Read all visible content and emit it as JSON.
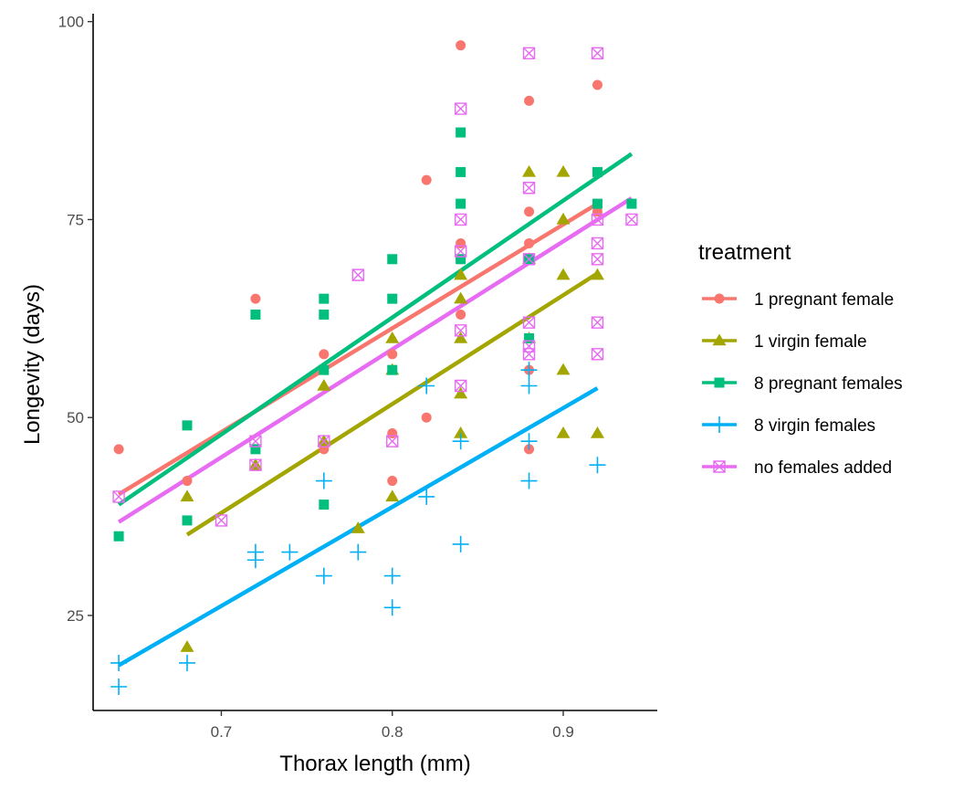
{
  "chart_data": {
    "type": "scatter",
    "title": "",
    "xlabel": "Thorax length (mm)",
    "ylabel": "Longevity (days)",
    "xlim": [
      0.625,
      0.955
    ],
    "ylim": [
      13,
      101
    ],
    "x_ticks": [
      0.7,
      0.8,
      0.9
    ],
    "y_ticks": [
      25,
      50,
      75,
      100
    ],
    "x_tick_labels": [
      "0.7",
      "0.8",
      "0.9"
    ],
    "y_tick_labels": [
      "25",
      "50",
      "75",
      "100"
    ],
    "grid": false,
    "legend": {
      "title": "treatment",
      "position": "right"
    },
    "series": [
      {
        "name": "1 pregnant female",
        "color": "#F8766D",
        "marker": "circle",
        "points": [
          [
            0.64,
            46
          ],
          [
            0.68,
            42
          ],
          [
            0.72,
            65
          ],
          [
            0.76,
            58
          ],
          [
            0.76,
            46
          ],
          [
            0.8,
            58
          ],
          [
            0.8,
            48
          ],
          [
            0.8,
            42
          ],
          [
            0.82,
            80
          ],
          [
            0.82,
            50
          ],
          [
            0.84,
            97
          ],
          [
            0.84,
            72
          ],
          [
            0.84,
            70
          ],
          [
            0.84,
            63
          ],
          [
            0.88,
            90
          ],
          [
            0.88,
            76
          ],
          [
            0.88,
            72
          ],
          [
            0.88,
            56
          ],
          [
            0.88,
            46
          ],
          [
            0.92,
            92
          ],
          [
            0.92,
            76
          ]
        ],
        "fit": [
          [
            0.64,
            40.3
          ],
          [
            0.92,
            77
          ]
        ]
      },
      {
        "name": "1 virgin female",
        "color": "#A3A500",
        "marker": "triangle",
        "points": [
          [
            0.68,
            40
          ],
          [
            0.68,
            21
          ],
          [
            0.72,
            44
          ],
          [
            0.76,
            54
          ],
          [
            0.76,
            47
          ],
          [
            0.78,
            36
          ],
          [
            0.8,
            60
          ],
          [
            0.8,
            56
          ],
          [
            0.8,
            40
          ],
          [
            0.84,
            68
          ],
          [
            0.84,
            65
          ],
          [
            0.84,
            60
          ],
          [
            0.84,
            53
          ],
          [
            0.84,
            48
          ],
          [
            0.88,
            81
          ],
          [
            0.88,
            70
          ],
          [
            0.88,
            60
          ],
          [
            0.9,
            81
          ],
          [
            0.9,
            75
          ],
          [
            0.9,
            68
          ],
          [
            0.9,
            56
          ],
          [
            0.9,
            48
          ],
          [
            0.92,
            68
          ],
          [
            0.92,
            48
          ]
        ],
        "fit": [
          [
            0.68,
            35.2
          ],
          [
            0.92,
            68.2
          ]
        ]
      },
      {
        "name": "8 pregnant females",
        "color": "#00BF7D",
        "marker": "square",
        "points": [
          [
            0.64,
            35
          ],
          [
            0.68,
            49
          ],
          [
            0.68,
            37
          ],
          [
            0.72,
            63
          ],
          [
            0.72,
            46
          ],
          [
            0.76,
            65
          ],
          [
            0.76,
            63
          ],
          [
            0.76,
            56
          ],
          [
            0.76,
            39
          ],
          [
            0.8,
            70
          ],
          [
            0.8,
            65
          ],
          [
            0.8,
            56
          ],
          [
            0.84,
            86
          ],
          [
            0.84,
            81
          ],
          [
            0.84,
            77
          ],
          [
            0.84,
            70
          ],
          [
            0.88,
            70
          ],
          [
            0.88,
            60
          ],
          [
            0.92,
            81
          ],
          [
            0.92,
            77
          ],
          [
            0.94,
            77
          ]
        ],
        "fit": [
          [
            0.64,
            39
          ],
          [
            0.94,
            83.3
          ]
        ]
      },
      {
        "name": "8 virgin females",
        "color": "#00B0F6",
        "marker": "plus",
        "points": [
          [
            0.64,
            19
          ],
          [
            0.64,
            16
          ],
          [
            0.68,
            19
          ],
          [
            0.72,
            33
          ],
          [
            0.72,
            32
          ],
          [
            0.74,
            33
          ],
          [
            0.76,
            42
          ],
          [
            0.76,
            30
          ],
          [
            0.78,
            33
          ],
          [
            0.8,
            30
          ],
          [
            0.8,
            26
          ],
          [
            0.82,
            54
          ],
          [
            0.82,
            40
          ],
          [
            0.84,
            47
          ],
          [
            0.84,
            34
          ],
          [
            0.88,
            56
          ],
          [
            0.88,
            54
          ],
          [
            0.88,
            47
          ],
          [
            0.88,
            42
          ],
          [
            0.92,
            44
          ]
        ],
        "fit": [
          [
            0.64,
            18.7
          ],
          [
            0.92,
            53.7
          ]
        ]
      },
      {
        "name": "no females added",
        "color": "#E76BF3",
        "marker": "square-cross",
        "points": [
          [
            0.64,
            40
          ],
          [
            0.7,
            37
          ],
          [
            0.72,
            47
          ],
          [
            0.72,
            44
          ],
          [
            0.76,
            47
          ],
          [
            0.78,
            68
          ],
          [
            0.8,
            47
          ],
          [
            0.84,
            89
          ],
          [
            0.84,
            75
          ],
          [
            0.84,
            71
          ],
          [
            0.84,
            61
          ],
          [
            0.84,
            54
          ],
          [
            0.88,
            96
          ],
          [
            0.88,
            79
          ],
          [
            0.88,
            70
          ],
          [
            0.88,
            62
          ],
          [
            0.88,
            59
          ],
          [
            0.88,
            58
          ],
          [
            0.92,
            96
          ],
          [
            0.92,
            75
          ],
          [
            0.92,
            72
          ],
          [
            0.92,
            70
          ],
          [
            0.92,
            62
          ],
          [
            0.92,
            58
          ],
          [
            0.94,
            75
          ]
        ],
        "fit": [
          [
            0.64,
            36.8
          ],
          [
            0.94,
            77.7
          ]
        ]
      }
    ]
  }
}
